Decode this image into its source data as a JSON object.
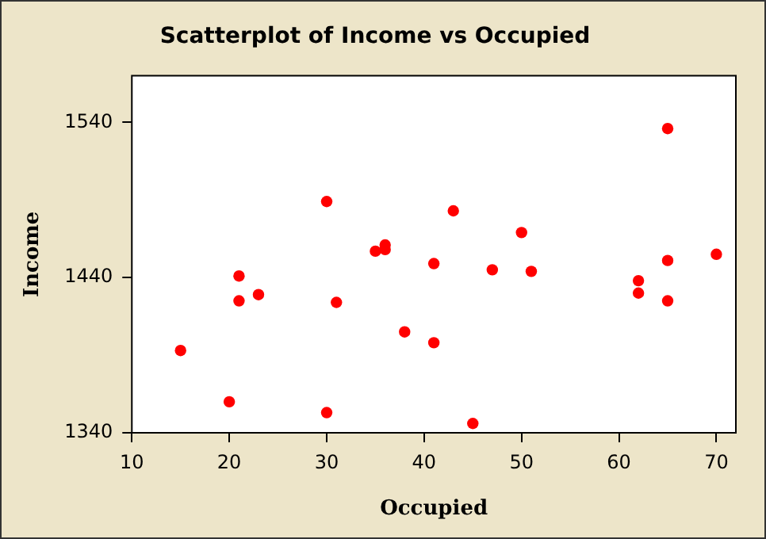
{
  "chart_data": {
    "type": "scatter",
    "title": "Scatterplot of Income vs Occupied",
    "xlabel": "Occupied",
    "ylabel": "Income",
    "x": [
      15,
      20,
      21,
      21,
      23,
      30,
      30,
      31,
      35,
      36,
      36,
      38,
      41,
      41,
      43,
      45,
      47,
      50,
      51,
      62,
      62,
      65,
      65,
      65,
      70
    ],
    "series": [
      {
        "color": "#ff0000",
        "values": [
          1393,
          1360,
          1441,
          1425,
          1429,
          1489,
          1353,
          1424,
          1457,
          1461,
          1458,
          1405,
          1449,
          1398,
          1483,
          1346,
          1445,
          1469,
          1444,
          1438,
          1430,
          1536,
          1451,
          1425,
          1455
        ]
      }
    ],
    "xlim": [
      10,
      72
    ],
    "xticks": [
      10,
      20,
      30,
      40,
      50,
      60,
      70
    ],
    "ylim": [
      1340,
      1570
    ],
    "yticks": [
      1340,
      1440,
      1540
    ],
    "grid": false,
    "legend": false,
    "marker": "circle"
  }
}
